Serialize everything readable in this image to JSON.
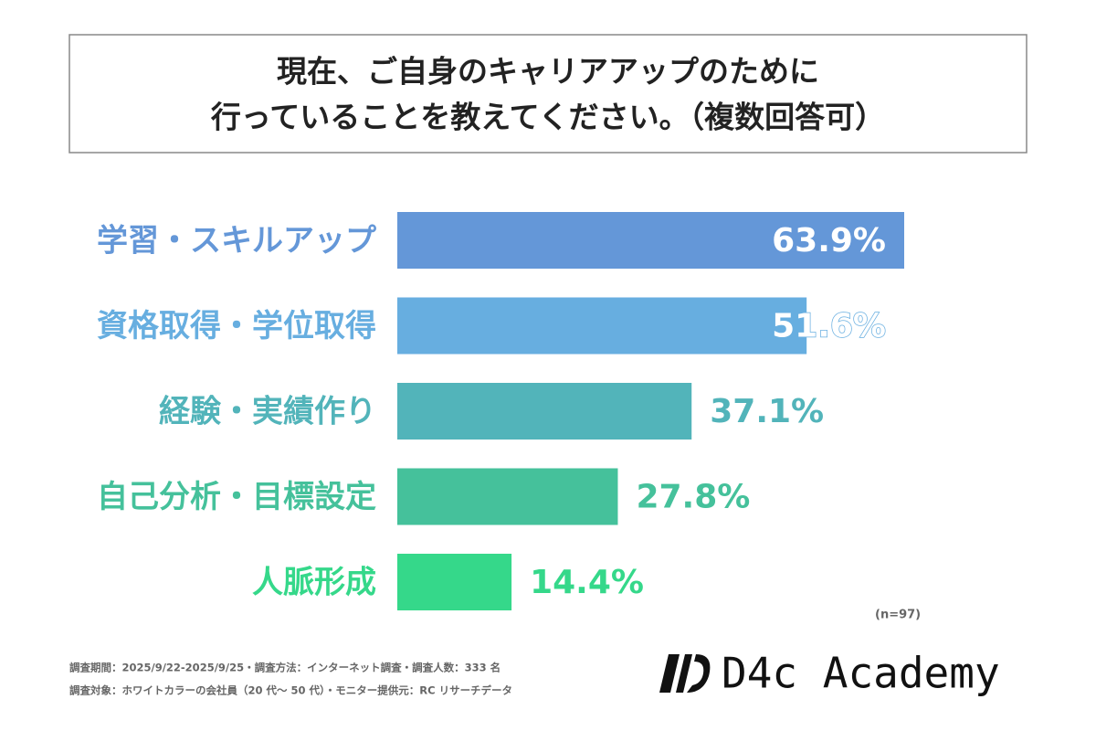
{
  "chart_data": {
    "type": "bar",
    "orientation": "horizontal",
    "title_lines": [
      "現在、ご自身のキャリアアップのために",
      "行っていることを教えてください。（複数回答可）"
    ],
    "categories": [
      "学習・スキルアップ",
      "資格取得・学位取得",
      "経験・実績作り",
      "自己分析・目標設定",
      "人脈形成"
    ],
    "values": [
      63.9,
      51.6,
      37.1,
      27.8,
      14.4
    ],
    "value_labels": [
      "63.9%",
      "51.6%",
      "37.1%",
      "27.8%",
      "14.4%"
    ],
    "colors": [
      "#6497d8",
      "#67aee0",
      "#52b4ba",
      "#45c19b",
      "#35d88a"
    ],
    "sample_note": "(n=97)"
  },
  "footer": {
    "notes": [
      "調査期間：2025/9/22-2025/9/25・調査方法：インターネット調査・調査人数：333 名",
      "調査対象：ホワイトカラーの会社員（20 代～ 50 代）・モニター提供元：RC リサーチデータ"
    ],
    "brand": "D4c Academy"
  }
}
